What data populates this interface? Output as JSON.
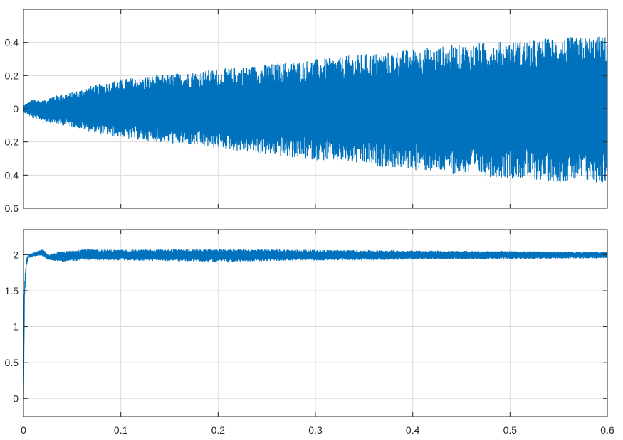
{
  "chart_data": [
    {
      "type": "line",
      "title": "",
      "xlabel": "",
      "ylabel": "",
      "xlim": [
        0,
        0.6
      ],
      "ylim": [
        -0.6,
        0.6
      ],
      "x_ticks": [
        0,
        0.1,
        0.2,
        0.3,
        0.4,
        0.5,
        0.6
      ],
      "y_ticks": [
        -0.6,
        -0.4,
        -0.2,
        0,
        0.2,
        0.4
      ],
      "y_tick_labels": [
        "0.6",
        "0.4",
        "0.2",
        "0",
        "0.2",
        "0.4"
      ],
      "x_tick_labels_visible": false,
      "grid": true,
      "line_color": "#0072BD",
      "series": [
        {
          "description_kind": "oscillation-envelope",
          "x": [
            0,
            0.01,
            0.02,
            0.03,
            0.05,
            0.07,
            0.1,
            0.15,
            0.2,
            0.25,
            0.3,
            0.35,
            0.4,
            0.45,
            0.5,
            0.55,
            0.6
          ],
          "upper": [
            0.02,
            0.06,
            0.05,
            0.08,
            0.1,
            0.14,
            0.18,
            0.21,
            0.24,
            0.27,
            0.3,
            0.33,
            0.36,
            0.39,
            0.41,
            0.43,
            0.44
          ],
          "lower": [
            -0.02,
            -0.06,
            -0.07,
            -0.09,
            -0.11,
            -0.14,
            -0.18,
            -0.21,
            -0.24,
            -0.28,
            -0.31,
            -0.34,
            -0.37,
            -0.4,
            -0.42,
            -0.44,
            -0.45
          ]
        }
      ]
    },
    {
      "type": "line",
      "title": "",
      "xlabel": "",
      "ylabel": "",
      "xlim": [
        0,
        0.6
      ],
      "ylim": [
        -0.25,
        2.35
      ],
      "x_ticks": [
        0,
        0.1,
        0.2,
        0.3,
        0.4,
        0.5,
        0.6
      ],
      "x_tick_labels": [
        "0",
        "0.1",
        "0.2",
        "0.3",
        "0.4",
        "0.5",
        "0.6"
      ],
      "y_ticks": [
        0,
        0.5,
        1,
        1.5,
        2
      ],
      "y_tick_labels": [
        "0",
        "0.5",
        "1",
        "1.5",
        "2"
      ],
      "grid": true,
      "line_color": "#0072BD",
      "series": [
        {
          "description_kind": "step-response-band",
          "x": [
            0,
            0.001,
            0.003,
            0.005,
            0.01,
            0.02,
            0.025,
            0.04,
            0.06,
            0.1,
            0.2,
            0.3,
            0.4,
            0.5,
            0.6
          ],
          "upper": [
            0,
            1.6,
            1.95,
            2.0,
            2.03,
            2.08,
            2.0,
            2.05,
            2.08,
            2.07,
            2.08,
            2.07,
            2.06,
            2.05,
            2.04
          ],
          "lower": [
            0,
            1.4,
            1.85,
            1.95,
            1.98,
            1.98,
            1.93,
            1.9,
            1.92,
            1.92,
            1.9,
            1.92,
            1.93,
            1.94,
            1.95
          ]
        }
      ]
    }
  ]
}
